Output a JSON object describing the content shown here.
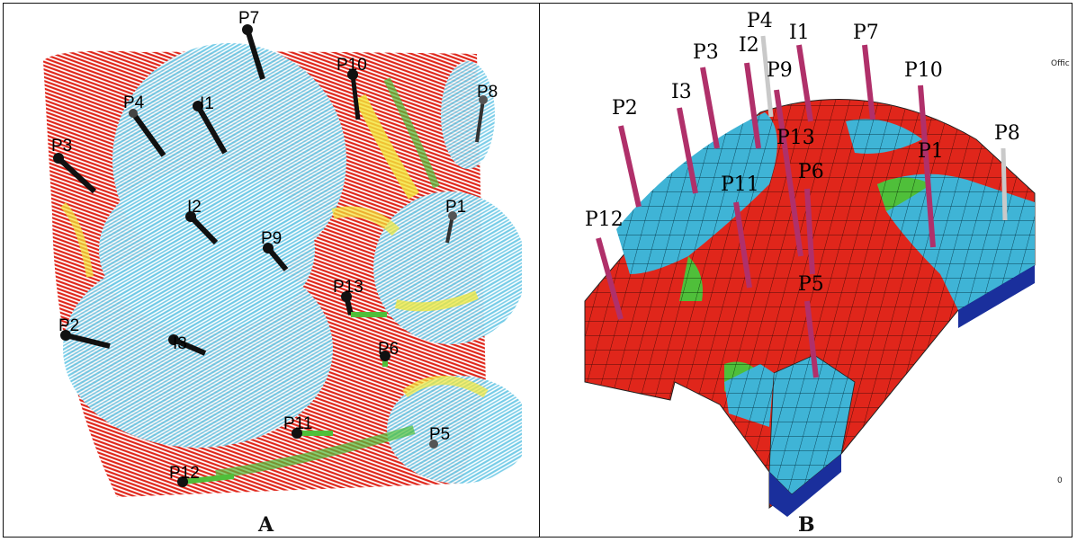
{
  "panel_a": {
    "label": "A",
    "wells": [
      {
        "name": "P7"
      },
      {
        "name": "P10"
      },
      {
        "name": "P8"
      },
      {
        "name": "P4"
      },
      {
        "name": "I1"
      },
      {
        "name": "P3"
      },
      {
        "name": "I2"
      },
      {
        "name": "P1"
      },
      {
        "name": "P9"
      },
      {
        "name": "P13"
      },
      {
        "name": "P2"
      },
      {
        "name": "I3"
      },
      {
        "name": "P6"
      },
      {
        "name": "P11"
      },
      {
        "name": "P5"
      },
      {
        "name": "P12"
      }
    ]
  },
  "panel_b": {
    "label": "B",
    "wells": [
      {
        "name": "P4"
      },
      {
        "name": "I1"
      },
      {
        "name": "P7"
      },
      {
        "name": "P3"
      },
      {
        "name": "I2"
      },
      {
        "name": "P9"
      },
      {
        "name": "I3"
      },
      {
        "name": "P10"
      },
      {
        "name": "P2"
      },
      {
        "name": "P13"
      },
      {
        "name": "P8"
      },
      {
        "name": "P6"
      },
      {
        "name": "P1"
      },
      {
        "name": "P11"
      },
      {
        "name": "P12"
      },
      {
        "name": "P5"
      }
    ],
    "corner_text": "Office",
    "small_mark": "0"
  },
  "colors": {
    "water": "#6ec9e6",
    "oil": "#e0261b",
    "transition_yellow": "#f2e83a",
    "transition_green": "#4fbf3a",
    "well_pipe": "#b0306a",
    "well_marker": "#111111",
    "deep_base": "#1a2f9c"
  }
}
